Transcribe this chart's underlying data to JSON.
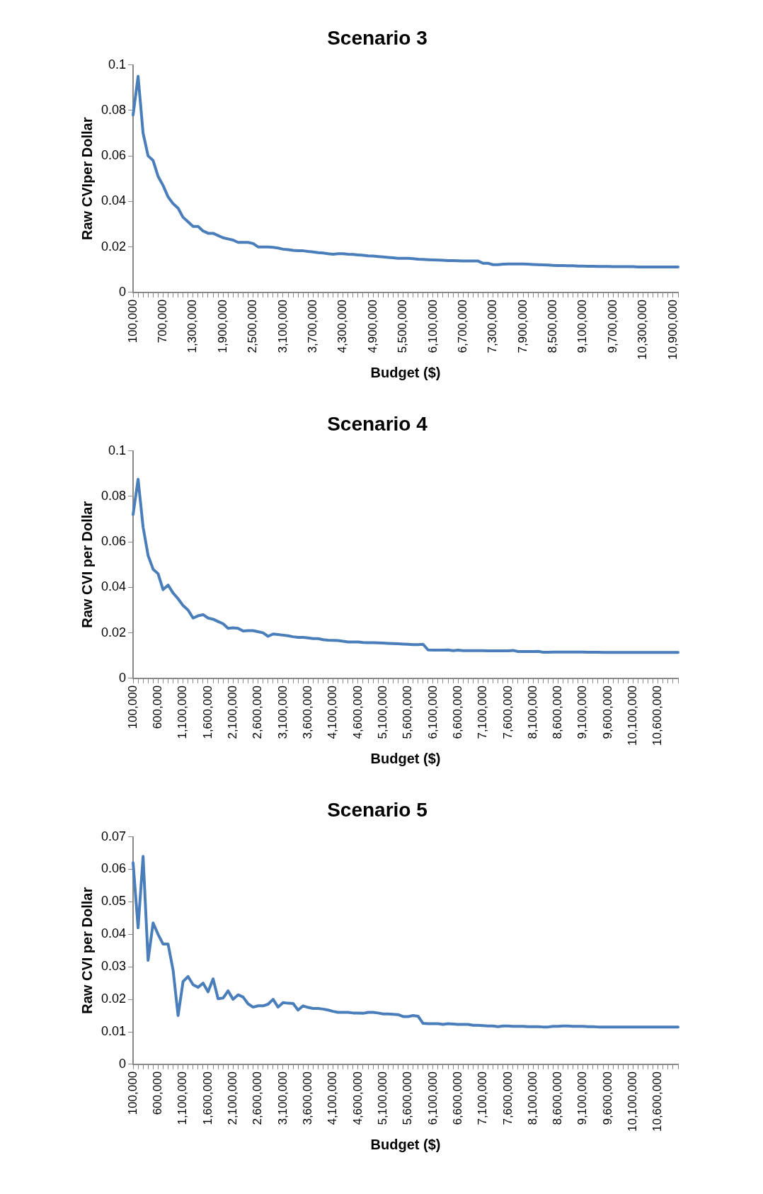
{
  "chart_data": [
    {
      "type": "line",
      "title": "Scenario 3",
      "xlabel": "Budget ($)",
      "ylabel": "Raw CVIper Dollar",
      "categories": [
        "100,000",
        null,
        null,
        null,
        null,
        null,
        "700,000",
        null,
        null,
        null,
        null,
        null,
        "1,300,000",
        null,
        null,
        null,
        null,
        null,
        "1,900,000",
        null,
        null,
        null,
        null,
        null,
        "2,500,000",
        null,
        null,
        null,
        null,
        null,
        "3,100,000",
        null,
        null,
        null,
        null,
        null,
        "3,700,000",
        null,
        null,
        null,
        null,
        null,
        "4,300,000",
        null,
        null,
        null,
        null,
        null,
        "4,900,000",
        null,
        null,
        null,
        null,
        null,
        "5,500,000",
        null,
        null,
        null,
        null,
        null,
        "6,100,000",
        null,
        null,
        null,
        null,
        null,
        "6,700,000",
        null,
        null,
        null,
        null,
        null,
        "7,300,000",
        null,
        null,
        null,
        null,
        null,
        "7,900,000",
        null,
        null,
        null,
        null,
        null,
        "8,500,000",
        null,
        null,
        null,
        null,
        null,
        "9,100,000",
        null,
        null,
        null,
        null,
        null,
        "9,700,000",
        null,
        null,
        null,
        null,
        null,
        "10,300,000",
        null,
        null,
        null,
        null,
        null,
        "10,900,000",
        null
      ],
      "series": [
        {
          "color": "#4a7ebb",
          "values": [
            0.078,
            0.095,
            0.07,
            0.06,
            0.058,
            0.051,
            0.047,
            0.042,
            0.039,
            0.037,
            0.033,
            0.031,
            0.029,
            0.029,
            0.027,
            0.026,
            0.026,
            0.025,
            0.024,
            0.0235,
            0.023,
            0.022,
            0.022,
            0.022,
            0.0215,
            0.02,
            0.02,
            0.02,
            0.0198,
            0.0195,
            0.019,
            0.0188,
            0.0185,
            0.0183,
            0.0183,
            0.018,
            0.0178,
            0.0175,
            0.0173,
            0.017,
            0.0168,
            0.017,
            0.017,
            0.0168,
            0.0167,
            0.0165,
            0.0163,
            0.0161,
            0.016,
            0.0158,
            0.0156,
            0.0154,
            0.0152,
            0.015,
            0.015,
            0.015,
            0.0148,
            0.0146,
            0.0145,
            0.0144,
            0.0143,
            0.0142,
            0.0141,
            0.014,
            0.014,
            0.0139,
            0.0138,
            0.0138,
            0.0138,
            0.0138,
            0.0128,
            0.0128,
            0.0122,
            0.0122,
            0.0124,
            0.0125,
            0.0125,
            0.0125,
            0.0125,
            0.0124,
            0.0123,
            0.0122,
            0.0121,
            0.012,
            0.0119,
            0.0118,
            0.0118,
            0.0117,
            0.0117,
            0.0116,
            0.0116,
            0.0115,
            0.0115,
            0.0114,
            0.0114,
            0.0114,
            0.0113,
            0.0113,
            0.0113,
            0.0113,
            0.0113,
            0.0112,
            0.0112,
            0.0112,
            0.0112,
            0.0112,
            0.0112,
            0.0112,
            0.0112,
            0.0112
          ]
        }
      ],
      "ylim": [
        0,
        0.1
      ],
      "yticks": [
        0,
        0.02,
        0.04,
        0.06,
        0.08,
        0.1
      ]
    },
    {
      "type": "line",
      "title": "Scenario 4",
      "xlabel": "Budget ($)",
      "ylabel": "Raw CVI per Dollar",
      "categories": [
        "100,000",
        null,
        null,
        null,
        null,
        "600,000",
        null,
        null,
        null,
        null,
        "1,100,000",
        null,
        null,
        null,
        null,
        "1,600,000",
        null,
        null,
        null,
        null,
        "2,100,000",
        null,
        null,
        null,
        null,
        "2,600,000",
        null,
        null,
        null,
        null,
        "3,100,000",
        null,
        null,
        null,
        null,
        "3,600,000",
        null,
        null,
        null,
        null,
        "4,100,000",
        null,
        null,
        null,
        null,
        "4,600,000",
        null,
        null,
        null,
        null,
        "5,100,000",
        null,
        null,
        null,
        null,
        "5,600,000",
        null,
        null,
        null,
        null,
        "6,100,000",
        null,
        null,
        null,
        null,
        "6,600,000",
        null,
        null,
        null,
        null,
        "7,100,000",
        null,
        null,
        null,
        null,
        "7,600,000",
        null,
        null,
        null,
        null,
        "8,100,000",
        null,
        null,
        null,
        null,
        "8,600,000",
        null,
        null,
        null,
        null,
        "9,100,000",
        null,
        null,
        null,
        null,
        "9,600,000",
        null,
        null,
        null,
        null,
        "10,100,000",
        null,
        null,
        null,
        null,
        "10,600,000",
        null,
        null,
        null,
        null
      ],
      "series": [
        {
          "color": "#4a7ebb",
          "values": [
            0.072,
            0.0875,
            0.0665,
            0.054,
            0.048,
            0.046,
            0.039,
            0.041,
            0.0375,
            0.035,
            0.032,
            0.03,
            0.0265,
            0.0275,
            0.028,
            0.0265,
            0.026,
            0.025,
            0.024,
            0.022,
            0.0222,
            0.022,
            0.0208,
            0.021,
            0.021,
            0.0205,
            0.02,
            0.0185,
            0.0195,
            0.0193,
            0.019,
            0.0187,
            0.0183,
            0.018,
            0.018,
            0.0178,
            0.0175,
            0.0175,
            0.017,
            0.0168,
            0.0167,
            0.0166,
            0.0163,
            0.016,
            0.016,
            0.016,
            0.0158,
            0.0157,
            0.0157,
            0.0156,
            0.0155,
            0.0154,
            0.0153,
            0.0152,
            0.0151,
            0.015,
            0.0148,
            0.0148,
            0.015,
            0.0125,
            0.0124,
            0.0124,
            0.0124,
            0.0125,
            0.0122,
            0.0124,
            0.0122,
            0.0122,
            0.0122,
            0.0122,
            0.0122,
            0.0121,
            0.0121,
            0.0121,
            0.0121,
            0.0121,
            0.0123,
            0.0118,
            0.0118,
            0.0118,
            0.0118,
            0.0119,
            0.0115,
            0.0115,
            0.0116,
            0.0116,
            0.0116,
            0.0116,
            0.0116,
            0.0116,
            0.0116,
            0.0115,
            0.0115,
            0.0115,
            0.0114,
            0.0114,
            0.0114,
            0.0114,
            0.0114,
            0.0114,
            0.0114,
            0.0114,
            0.0114,
            0.0114,
            0.0114,
            0.0114,
            0.0114,
            0.0114,
            0.0114,
            0.0114
          ]
        }
      ],
      "ylim": [
        0,
        0.1
      ],
      "yticks": [
        0,
        0.02,
        0.04,
        0.06,
        0.08,
        0.1
      ]
    },
    {
      "type": "line",
      "title": "Scenario 5",
      "xlabel": "Budget ($)",
      "ylabel": "Raw CVI per Dollar",
      "categories": [
        "100,000",
        null,
        null,
        null,
        null,
        "600,000",
        null,
        null,
        null,
        null,
        "1,100,000",
        null,
        null,
        null,
        null,
        "1,600,000",
        null,
        null,
        null,
        null,
        "2,100,000",
        null,
        null,
        null,
        null,
        "2,600,000",
        null,
        null,
        null,
        null,
        "3,100,000",
        null,
        null,
        null,
        null,
        "3,600,000",
        null,
        null,
        null,
        null,
        "4,100,000",
        null,
        null,
        null,
        null,
        "4,600,000",
        null,
        null,
        null,
        null,
        "5,100,000",
        null,
        null,
        null,
        null,
        "5,600,000",
        null,
        null,
        null,
        null,
        "6,100,000",
        null,
        null,
        null,
        null,
        "6,600,000",
        null,
        null,
        null,
        null,
        "7,100,000",
        null,
        null,
        null,
        null,
        "7,600,000",
        null,
        null,
        null,
        null,
        "8,100,000",
        null,
        null,
        null,
        null,
        "8,600,000",
        null,
        null,
        null,
        null,
        "9,100,000",
        null,
        null,
        null,
        null,
        "9,600,000",
        null,
        null,
        null,
        null,
        "10,100,000",
        null,
        null,
        null,
        null,
        "10,600,000",
        null,
        null,
        null,
        null
      ],
      "series": [
        {
          "color": "#4a7ebb",
          "values": [
            0.062,
            0.042,
            0.064,
            0.032,
            0.0435,
            0.04,
            0.037,
            0.037,
            0.029,
            0.015,
            0.0255,
            0.027,
            0.0245,
            0.0237,
            0.025,
            0.0223,
            0.0263,
            0.0202,
            0.0204,
            0.0226,
            0.02,
            0.0214,
            0.0207,
            0.0186,
            0.0176,
            0.018,
            0.018,
            0.0185,
            0.02,
            0.0176,
            0.019,
            0.0188,
            0.0187,
            0.0167,
            0.018,
            0.0175,
            0.0172,
            0.0172,
            0.017,
            0.0167,
            0.0163,
            0.016,
            0.016,
            0.016,
            0.0158,
            0.0158,
            0.0157,
            0.016,
            0.016,
            0.0158,
            0.0155,
            0.0155,
            0.0154,
            0.0153,
            0.0147,
            0.0147,
            0.015,
            0.0148,
            0.0126,
            0.0125,
            0.0125,
            0.0125,
            0.0123,
            0.0125,
            0.0124,
            0.0123,
            0.0123,
            0.0123,
            0.012,
            0.012,
            0.0119,
            0.0118,
            0.0118,
            0.0116,
            0.0118,
            0.0118,
            0.0117,
            0.0117,
            0.0117,
            0.0116,
            0.0116,
            0.0116,
            0.0115,
            0.0115,
            0.0117,
            0.0117,
            0.0118,
            0.0118,
            0.0117,
            0.0117,
            0.0117,
            0.0116,
            0.0116,
            0.0115,
            0.0115,
            0.0115,
            0.0115,
            0.0115,
            0.0115,
            0.0115,
            0.0115,
            0.0115,
            0.0115,
            0.0115,
            0.0115,
            0.0115,
            0.0115,
            0.0115,
            0.0115,
            0.0115
          ]
        }
      ],
      "ylim": [
        0,
        0.07
      ],
      "yticks": [
        0,
        0.01,
        0.02,
        0.03,
        0.04,
        0.05,
        0.06,
        0.07
      ]
    }
  ]
}
